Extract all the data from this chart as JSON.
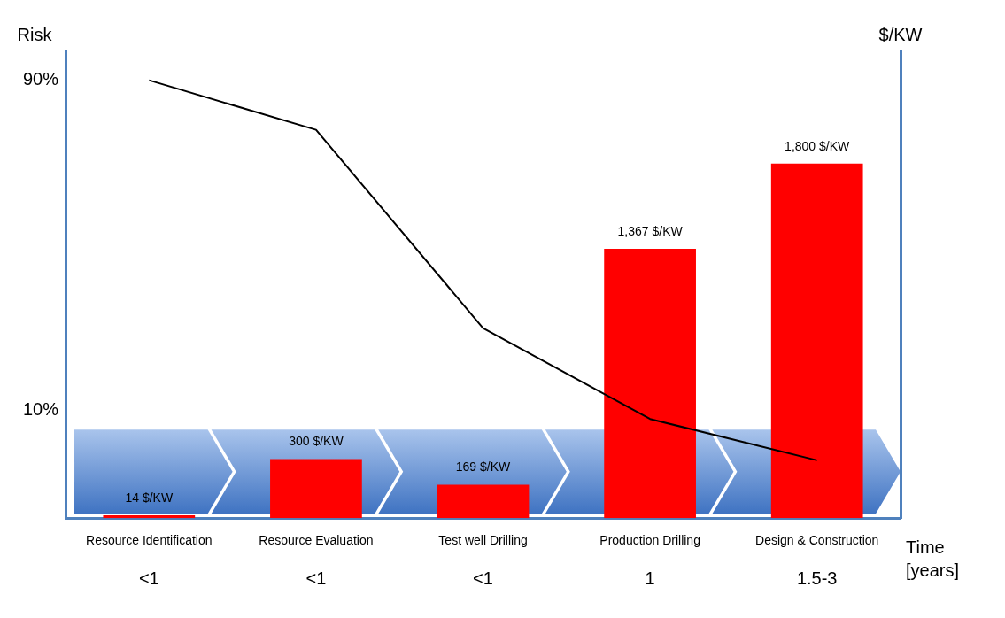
{
  "chart_data": {
    "type": "bar",
    "categories": [
      "Resource Identification",
      "Resource Evaluation",
      "Test well Drilling",
      "Production Drilling",
      "Design & Construction"
    ],
    "series": [
      {
        "axis": "y2",
        "color": "#ff0000",
        "values": [
          14,
          300,
          169,
          1367,
          1800
        ],
        "value_labels": [
          "14 $/KW",
          "300 $/KW",
          "169 $/KW",
          "1,367 $/KW",
          "1,800 $/KW"
        ]
      },
      {
        "type": "line",
        "color": "#000000",
        "values": [
          90,
          78,
          30,
          8,
          -2
        ]
      }
    ],
    "ylabel": "Risk",
    "y2label": "$/KW",
    "xlabel": "Time [years]",
    "ylim": [
      -16,
      97
    ],
    "yticks": [
      {
        "value": 90,
        "label": "90%"
      },
      {
        "value": 10,
        "label": "10%"
      }
    ],
    "y2lim": [
      0,
      2370
    ],
    "marker": "none",
    "line_style": "solid",
    "grid": false,
    "annotations": [
      "<1",
      "<1",
      "<1",
      "1",
      "1.5-3"
    ]
  }
}
